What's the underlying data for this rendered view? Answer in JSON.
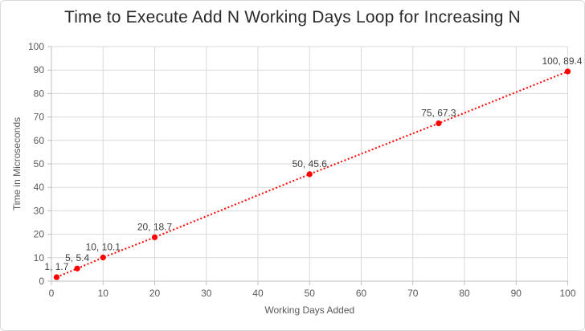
{
  "chart_data": {
    "type": "scatter",
    "title": "Time to Execute Add N Working Days Loop for Increasing N",
    "xlabel": "Working Days Added",
    "ylabel": "Time in Microseconds",
    "series": [
      {
        "name": "execution-time",
        "x": [
          1,
          5,
          10,
          20,
          50,
          75,
          100
        ],
        "y": [
          1.7,
          5.4,
          10.1,
          18.7,
          45.6,
          67.3,
          89.4
        ],
        "point_labels": [
          "1, 1.7",
          "5, 5.4",
          "10, 10.1",
          "20, 18.7",
          "50, 45.6",
          "75, 67.3",
          "100, 89.4"
        ],
        "marker_color": "#FF0000",
        "line_color": "#FF0000",
        "line_style": "dotted"
      }
    ],
    "xlim": [
      0,
      100
    ],
    "ylim": [
      0,
      100
    ],
    "xticks": [
      0,
      10,
      20,
      30,
      40,
      50,
      60,
      70,
      80,
      90,
      100
    ],
    "yticks": [
      0,
      10,
      20,
      30,
      40,
      50,
      60,
      70,
      80,
      90,
      100
    ],
    "grid": true,
    "legend": "none"
  },
  "colors": {
    "title": "#2b2b2b",
    "axis_title": "#595959",
    "tick_label": "#595959",
    "gridline": "#d9d9d9",
    "axis_line": "#bfbfbf",
    "data_label": "#3f3f3f",
    "series_red": "#FF0000",
    "background": "#FFFFFF",
    "chart_border": "#d9d9d9"
  }
}
